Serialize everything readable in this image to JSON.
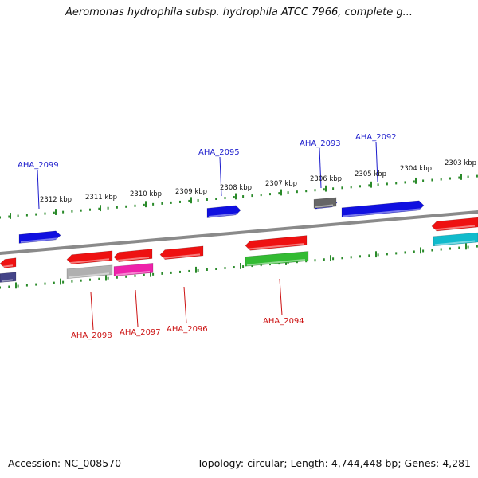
{
  "title": "Aeromonas hydrophila subsp. hydrophila ATCC 7966, complete g...",
  "footer": {
    "accession": "Accession: NC_008570",
    "summary": "Topology: circular; Length: 4,744,448 bp; Genes: 4,281"
  },
  "colors": {
    "backbone": "#8a8a8a",
    "ruler": "#2a8a2a",
    "forward_label": "#1a1acc",
    "reverse_label": "#cc1111"
  },
  "ruler_labels": [
    "2312 kbp",
    "2311 kbp",
    "2310 kbp",
    "2309 kbp",
    "2308 kbp",
    "2307 kbp",
    "2306 kbp",
    "2305 kbp",
    "2304 kbp",
    "2303 kbp"
  ],
  "genes_forward": [
    {
      "label": "AHA_2099",
      "color": "#1010e0"
    },
    {
      "label": "AHA_2095",
      "color": "#1010e0"
    },
    {
      "label": "AHA_2093",
      "color": "#1010e0"
    },
    {
      "label": "AHA_2092",
      "color": "#1010e0"
    }
  ],
  "genes_reverse": [
    {
      "label": "AHA_2098",
      "color": "#ee1111"
    },
    {
      "label": "AHA_2097",
      "color": "#ee1111"
    },
    {
      "label": "AHA_2096",
      "color": "#ee1111"
    },
    {
      "label": "AHA_2094",
      "color": "#ee1111"
    }
  ],
  "feature_colors": {
    "blue": "#1010e0",
    "red": "#ee1111",
    "grey": "#b0b0b0",
    "darkgrey": "#666666",
    "magenta": "#ee22aa",
    "green": "#33bb33",
    "cyan": "#11bbcc",
    "navy": "#444488"
  }
}
